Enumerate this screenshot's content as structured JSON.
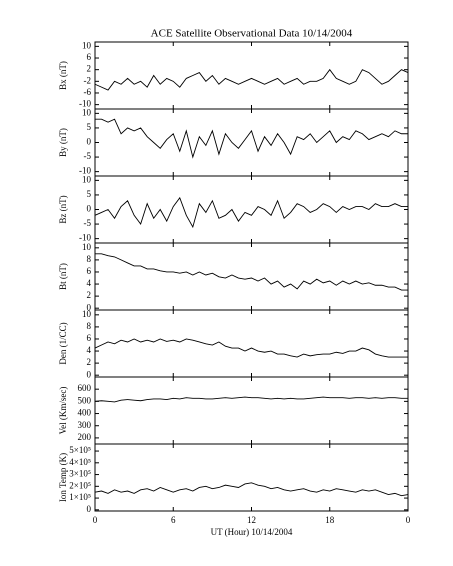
{
  "chart_data": [
    {
      "type": "line",
      "title": "ACE Satellite Observational Data   10/14/2004",
      "ylabel": "Bx (nT)",
      "color": "#000000",
      "x": [
        0,
        0.5,
        1,
        1.5,
        2,
        2.5,
        3,
        3.5,
        4,
        4.5,
        5,
        5.5,
        6,
        6.5,
        7,
        7.5,
        8,
        8.5,
        9,
        9.5,
        10,
        10.5,
        11,
        11.5,
        12,
        12.5,
        13,
        13.5,
        14,
        14.5,
        15,
        15.5,
        16,
        16.5,
        17,
        17.5,
        18,
        18.5,
        19,
        19.5,
        20,
        20.5,
        21,
        21.5,
        22,
        22.5,
        23,
        23.5,
        24
      ],
      "values": [
        -3,
        -4,
        -5,
        -2,
        -3,
        -1,
        -3,
        -2,
        -4,
        0,
        -3,
        -1,
        -2,
        -4,
        -1,
        0,
        1,
        -2,
        0,
        -3,
        -1,
        -2,
        -3,
        -2,
        -1,
        -2,
        -3,
        -2,
        -1,
        -3,
        -2,
        -1,
        -3,
        -2,
        -2,
        -1,
        2,
        -1,
        -2,
        -3,
        -2,
        2,
        1,
        -1,
        -3,
        -2,
        0,
        2,
        1
      ],
      "xlim": [
        0,
        24
      ],
      "ylim": [
        -11.5,
        11.5
      ],
      "yticks": [
        -10,
        -6,
        -2,
        2,
        6,
        10
      ]
    },
    {
      "type": "line",
      "ylabel": "By (nT)",
      "color": "#000000",
      "x": [
        0,
        0.5,
        1,
        1.5,
        2,
        2.5,
        3,
        3.5,
        4,
        4.5,
        5,
        5.5,
        6,
        6.5,
        7,
        7.5,
        8,
        8.5,
        9,
        9.5,
        10,
        10.5,
        11,
        11.5,
        12,
        12.5,
        13,
        13.5,
        14,
        14.5,
        15,
        15.5,
        16,
        16.5,
        17,
        17.5,
        18,
        18.5,
        19,
        19.5,
        20,
        20.5,
        21,
        21.5,
        22,
        22.5,
        23,
        23.5,
        24
      ],
      "values": [
        8,
        8,
        7,
        8,
        3,
        5,
        4,
        5,
        2,
        0,
        -2,
        1,
        3,
        -3,
        4,
        -5,
        2,
        -1,
        4,
        -4,
        3,
        0,
        -2,
        1,
        4,
        -3,
        2,
        -1,
        3,
        0,
        -4,
        2,
        1,
        3,
        0,
        2,
        4,
        0,
        2,
        1,
        4,
        3,
        1,
        2,
        3,
        2,
        4,
        3,
        3
      ],
      "xlim": [
        0,
        24
      ],
      "ylim": [
        -11.5,
        11.5
      ],
      "yticks": [
        -10,
        -5,
        0,
        5,
        10
      ]
    },
    {
      "type": "line",
      "ylabel": "Bz (nT)",
      "color": "#000000",
      "x": [
        0,
        0.5,
        1,
        1.5,
        2,
        2.5,
        3,
        3.5,
        4,
        4.5,
        5,
        5.5,
        6,
        6.5,
        7,
        7.5,
        8,
        8.5,
        9,
        9.5,
        10,
        10.5,
        11,
        11.5,
        12,
        12.5,
        13,
        13.5,
        14,
        14.5,
        15,
        15.5,
        16,
        16.5,
        17,
        17.5,
        18,
        18.5,
        19,
        19.5,
        20,
        20.5,
        21,
        21.5,
        22,
        22.5,
        23,
        23.5,
        24
      ],
      "values": [
        -2,
        -1,
        0,
        -3,
        1,
        3,
        -2,
        -5,
        2,
        -3,
        0,
        -4,
        1,
        4,
        -2,
        -6,
        2,
        -1,
        3,
        -3,
        -2,
        0,
        -4,
        -1,
        -2,
        1,
        0,
        -2,
        3,
        -3,
        -1,
        2,
        1,
        -1,
        0,
        2,
        1,
        -1,
        1,
        0,
        1,
        1,
        0,
        2,
        1,
        1,
        2,
        1,
        1
      ],
      "xlim": [
        0,
        24
      ],
      "ylim": [
        -11.5,
        11.5
      ],
      "yticks": [
        -10,
        -5,
        0,
        5,
        10
      ]
    },
    {
      "type": "line",
      "ylabel": "Bt (nT)",
      "color": "#000000",
      "x": [
        0,
        0.5,
        1,
        1.5,
        2,
        2.5,
        3,
        3.5,
        4,
        4.5,
        5,
        5.5,
        6,
        6.5,
        7,
        7.5,
        8,
        8.5,
        9,
        9.5,
        10,
        10.5,
        11,
        11.5,
        12,
        12.5,
        13,
        13.5,
        14,
        14.5,
        15,
        15.5,
        16,
        16.5,
        17,
        17.5,
        18,
        18.5,
        19,
        19.5,
        20,
        20.5,
        21,
        21.5,
        22,
        22.5,
        23,
        23.5,
        24
      ],
      "values": [
        9,
        9,
        8.7,
        8.5,
        8,
        7.5,
        7,
        7,
        6.5,
        6.5,
        6.2,
        6,
        6,
        5.8,
        6,
        5.5,
        6,
        5.5,
        5.8,
        5.2,
        5,
        5.5,
        5,
        4.8,
        5,
        4.5,
        5,
        4,
        4.5,
        3.5,
        4,
        3.2,
        4.5,
        4,
        4.8,
        4.2,
        4.5,
        3.8,
        4.5,
        4,
        4.5,
        4,
        4.2,
        3.8,
        3.8,
        3.5,
        3.5,
        3,
        3
      ],
      "xlim": [
        0,
        24
      ],
      "ylim": [
        -0.3,
        10.8
      ],
      "yticks": [
        0,
        2,
        4,
        6,
        8,
        10
      ]
    },
    {
      "type": "line",
      "ylabel": "Den (1/CC)",
      "color": "#000000",
      "x": [
        0,
        0.5,
        1,
        1.5,
        2,
        2.5,
        3,
        3.5,
        4,
        4.5,
        5,
        5.5,
        6,
        6.5,
        7,
        7.5,
        8,
        8.5,
        9,
        9.5,
        10,
        10.5,
        11,
        11.5,
        12,
        12.5,
        13,
        13.5,
        14,
        14.5,
        15,
        15.5,
        16,
        16.5,
        17,
        17.5,
        18,
        18.5,
        19,
        19.5,
        20,
        20.5,
        21,
        21.5,
        22,
        22.5,
        23,
        23.5,
        24
      ],
      "values": [
        4.5,
        5,
        5.5,
        5.2,
        5.8,
        5.5,
        6,
        5.5,
        5.8,
        5.5,
        6,
        5.6,
        5.8,
        5.5,
        6,
        5.8,
        5.5,
        5.2,
        5,
        5.5,
        4.8,
        4.5,
        4.5,
        4,
        4.5,
        4,
        3.8,
        4,
        3.5,
        3.5,
        3.2,
        3,
        3.5,
        3.2,
        3.4,
        3.5,
        3.5,
        3.8,
        3.6,
        4,
        4,
        4.5,
        4.2,
        3.5,
        3.2,
        3,
        3,
        3,
        3
      ],
      "xlim": [
        0,
        24
      ],
      "ylim": [
        -0.3,
        10.8
      ],
      "yticks": [
        0,
        2,
        4,
        6,
        8,
        10
      ]
    },
    {
      "type": "line",
      "ylabel": "Vel (Km/sec)",
      "color": "#000000",
      "x": [
        0,
        0.5,
        1,
        1.5,
        2,
        2.5,
        3,
        3.5,
        4,
        4.5,
        5,
        5.5,
        6,
        6.5,
        7,
        7.5,
        8,
        8.5,
        9,
        9.5,
        10,
        10.5,
        11,
        11.5,
        12,
        12.5,
        13,
        13.5,
        14,
        14.5,
        15,
        15.5,
        16,
        16.5,
        17,
        17.5,
        18,
        18.5,
        19,
        19.5,
        20,
        20.5,
        21,
        21.5,
        22,
        22.5,
        23,
        23.5,
        24
      ],
      "values": [
        500,
        505,
        500,
        495,
        510,
        515,
        510,
        505,
        515,
        520,
        520,
        515,
        525,
        520,
        530,
        525,
        525,
        520,
        520,
        525,
        530,
        525,
        530,
        535,
        530,
        530,
        525,
        520,
        525,
        520,
        525,
        520,
        520,
        525,
        530,
        535,
        530,
        530,
        530,
        525,
        530,
        530,
        525,
        530,
        525,
        530,
        530,
        525,
        525
      ],
      "xlim": [
        0,
        24
      ],
      "ylim": [
        150,
        700
      ],
      "yticks": [
        200,
        300,
        400,
        500,
        600
      ]
    },
    {
      "type": "line",
      "ylabel": "Ion Temp (K)",
      "xlabel": "UT (Hour)   10/14/2004",
      "color": "#000000",
      "x": [
        0,
        0.5,
        1,
        1.5,
        2,
        2.5,
        3,
        3.5,
        4,
        4.5,
        5,
        5.5,
        6,
        6.5,
        7,
        7.5,
        8,
        8.5,
        9,
        9.5,
        10,
        10.5,
        11,
        11.5,
        12,
        12.5,
        13,
        13.5,
        14,
        14.5,
        15,
        15.5,
        16,
        16.5,
        17,
        17.5,
        18,
        18.5,
        19,
        19.5,
        20,
        20.5,
        21,
        21.5,
        22,
        22.5,
        23,
        23.5,
        24
      ],
      "values": [
        150000,
        160000,
        140000,
        170000,
        150000,
        160000,
        140000,
        170000,
        180000,
        160000,
        190000,
        170000,
        150000,
        170000,
        180000,
        160000,
        190000,
        200000,
        180000,
        190000,
        210000,
        200000,
        190000,
        220000,
        230000,
        210000,
        200000,
        180000,
        190000,
        170000,
        160000,
        170000,
        180000,
        160000,
        150000,
        170000,
        160000,
        180000,
        170000,
        160000,
        150000,
        170000,
        160000,
        170000,
        150000,
        130000,
        140000,
        120000,
        130000
      ],
      "xlim": [
        0,
        24
      ],
      "ylim": [
        -10000,
        560000
      ],
      "yticks": [
        0,
        {
          "value": 100000,
          "label": "1×10⁵"
        },
        {
          "value": 200000,
          "label": "2×10⁵"
        },
        {
          "value": 300000,
          "label": "3×10⁵"
        },
        {
          "value": 400000,
          "label": "4×10⁵"
        },
        {
          "value": 500000,
          "label": "5×10⁵"
        }
      ],
      "xticks": [
        0,
        6,
        12,
        18,
        {
          "value": 24,
          "label": "0"
        }
      ]
    }
  ]
}
